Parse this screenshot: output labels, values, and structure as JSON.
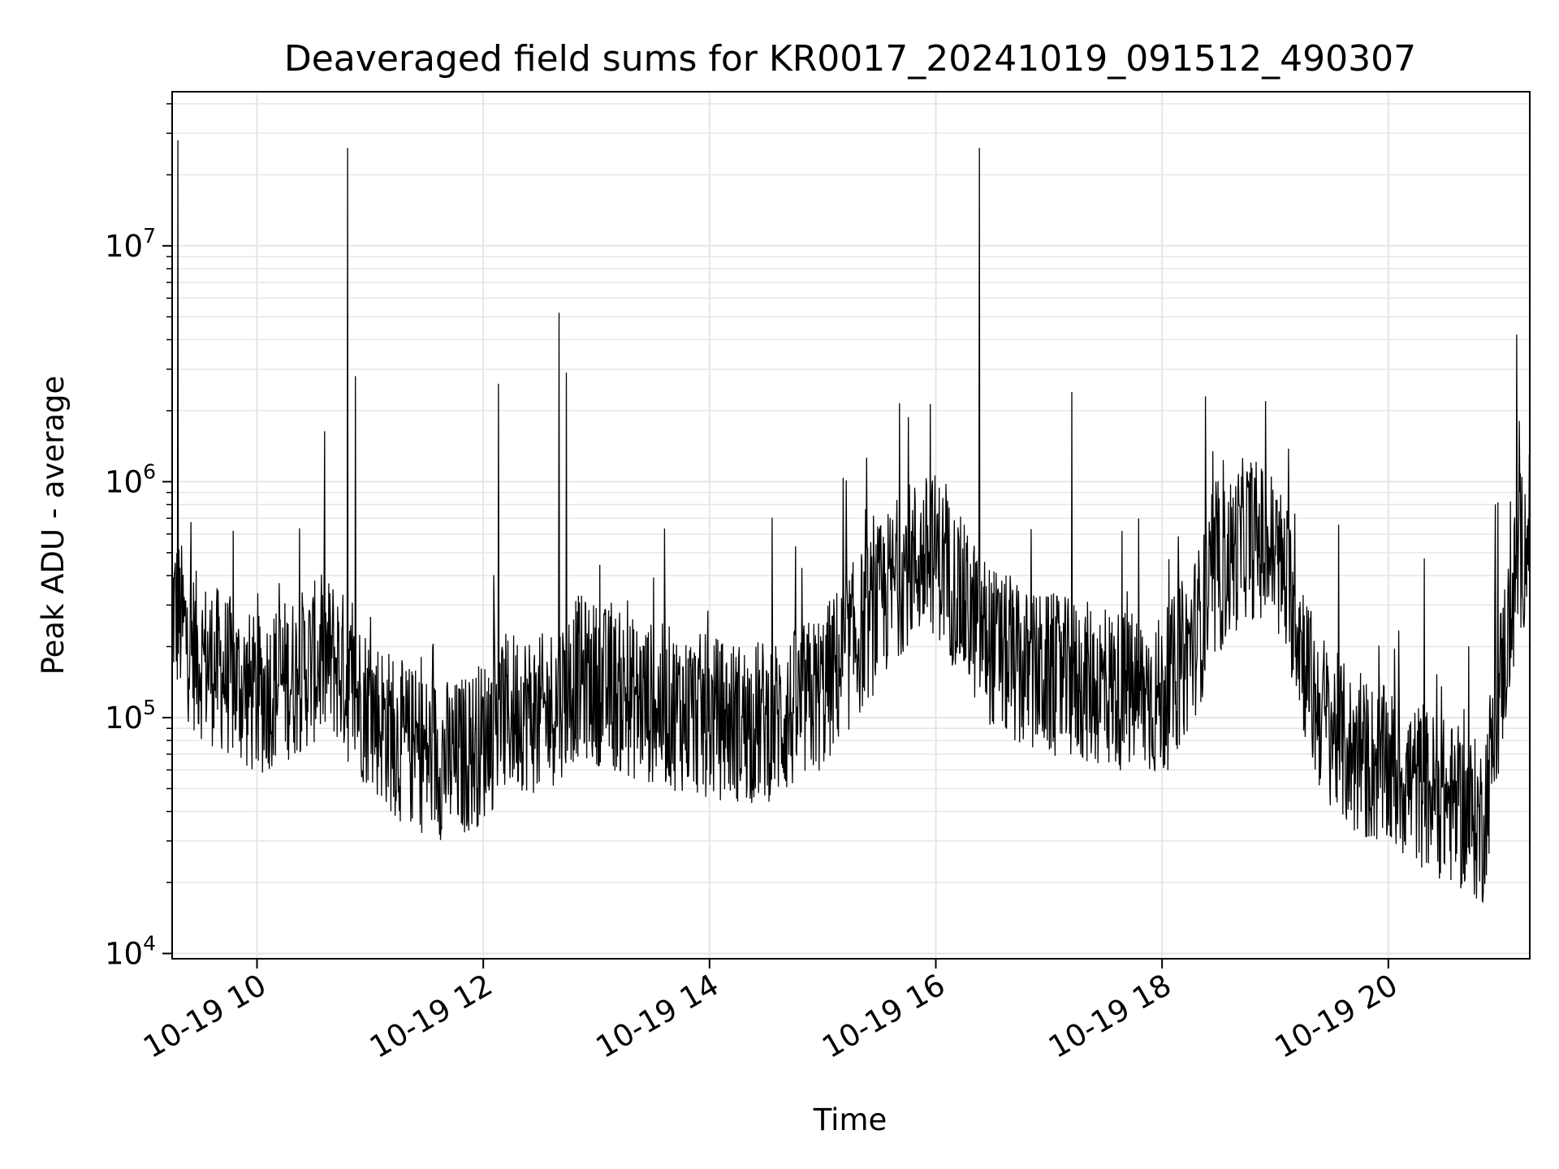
{
  "chart_data": {
    "type": "line",
    "title": "Deaveraged field sums for KR0017_20241019_091512_490307",
    "xlabel": "Time",
    "ylabel": "Peak ADU - average",
    "yscale": "log",
    "ylim": [
      9500,
      45000000
    ],
    "xlim": [
      "2024-10-19 09:15",
      "2024-10-19 21:15"
    ],
    "grid": true,
    "line_color": "#000000",
    "grid_color": "#e6e6e6",
    "x_ticks": [
      {
        "value": "2024-10-19 10:00",
        "label": "10-19 10"
      },
      {
        "value": "2024-10-19 12:00",
        "label": "10-19 12"
      },
      {
        "value": "2024-10-19 14:00",
        "label": "10-19 14"
      },
      {
        "value": "2024-10-19 16:00",
        "label": "10-19 16"
      },
      {
        "value": "2024-10-19 18:00",
        "label": "10-19 18"
      },
      {
        "value": "2024-10-19 20:00",
        "label": "10-19 20"
      }
    ],
    "y_ticks": [
      {
        "value": 10000,
        "base": "10",
        "exp": "4"
      },
      {
        "value": 100000,
        "base": "10",
        "exp": "5"
      },
      {
        "value": 1000000,
        "base": "10",
        "exp": "6"
      },
      {
        "value": 10000000,
        "base": "10",
        "exp": "7"
      }
    ],
    "series": [
      {
        "x": [
          "2024-10-19 09:15",
          "2024-10-19 09:20",
          "2024-10-19 09:25",
          "2024-10-19 09:30",
          "2024-10-19 09:40",
          "2024-10-19 09:50",
          "2024-10-19 10:00",
          "2024-10-19 10:10",
          "2024-10-19 10:20",
          "2024-10-19 10:30",
          "2024-10-19 10:40",
          "2024-10-19 10:45",
          "2024-10-19 10:50",
          "2024-10-19 11:00",
          "2024-10-19 11:15",
          "2024-10-19 11:30",
          "2024-10-19 11:45",
          "2024-10-19 12:00",
          "2024-10-19 12:10",
          "2024-10-19 12:20",
          "2024-10-19 12:30",
          "2024-10-19 12:40",
          "2024-10-19 12:50",
          "2024-10-19 13:00",
          "2024-10-19 13:20",
          "2024-10-19 13:40",
          "2024-10-19 14:00",
          "2024-10-19 14:20",
          "2024-10-19 14:40",
          "2024-10-19 15:00",
          "2024-10-19 15:15",
          "2024-10-19 15:30",
          "2024-10-19 15:45",
          "2024-10-19 16:00",
          "2024-10-19 16:15",
          "2024-10-19 16:30",
          "2024-10-19 16:45",
          "2024-10-19 17:00",
          "2024-10-19 17:20",
          "2024-10-19 17:40",
          "2024-10-19 18:00",
          "2024-10-19 18:15",
          "2024-10-19 18:30",
          "2024-10-19 18:45",
          "2024-10-19 19:00",
          "2024-10-19 19:10",
          "2024-10-19 19:20",
          "2024-10-19 19:40",
          "2024-10-19 20:00",
          "2024-10-19 20:20",
          "2024-10-19 20:40",
          "2024-10-19 20:50",
          "2024-10-19 21:00",
          "2024-10-19 21:10",
          "2024-10-19 21:15"
        ],
        "y": [
          300000,
          250000,
          200000,
          180000,
          160000,
          140000,
          120000,
          140000,
          150000,
          170000,
          180000,
          160000,
          130000,
          110000,
          80000,
          70000,
          65000,
          80000,
          100000,
          110000,
          100000,
          120000,
          150000,
          140000,
          120000,
          110000,
          100000,
          95000,
          100000,
          130000,
          200000,
          300000,
          450000,
          500000,
          300000,
          200000,
          160000,
          150000,
          140000,
          130000,
          120000,
          200000,
          400000,
          600000,
          500000,
          300000,
          120000,
          70000,
          60000,
          50000,
          40000,
          35000,
          150000,
          500000,
          600000
        ],
        "spikes": [
          {
            "x": "2024-10-19 09:18",
            "y": 28000000
          },
          {
            "x": "2024-10-19 10:48",
            "y": 26000000
          },
          {
            "x": "2024-10-19 10:52",
            "y": 2800000
          },
          {
            "x": "2024-10-19 12:08",
            "y": 2600000
          },
          {
            "x": "2024-10-19 12:40",
            "y": 5200000
          },
          {
            "x": "2024-10-19 12:44",
            "y": 2900000
          },
          {
            "x": "2024-10-19 16:23",
            "y": 26000000
          },
          {
            "x": "2024-10-19 17:12",
            "y": 2400000
          },
          {
            "x": "2024-10-19 18:23",
            "y": 2300000
          },
          {
            "x": "2024-10-19 21:08",
            "y": 4200000
          }
        ]
      }
    ]
  }
}
